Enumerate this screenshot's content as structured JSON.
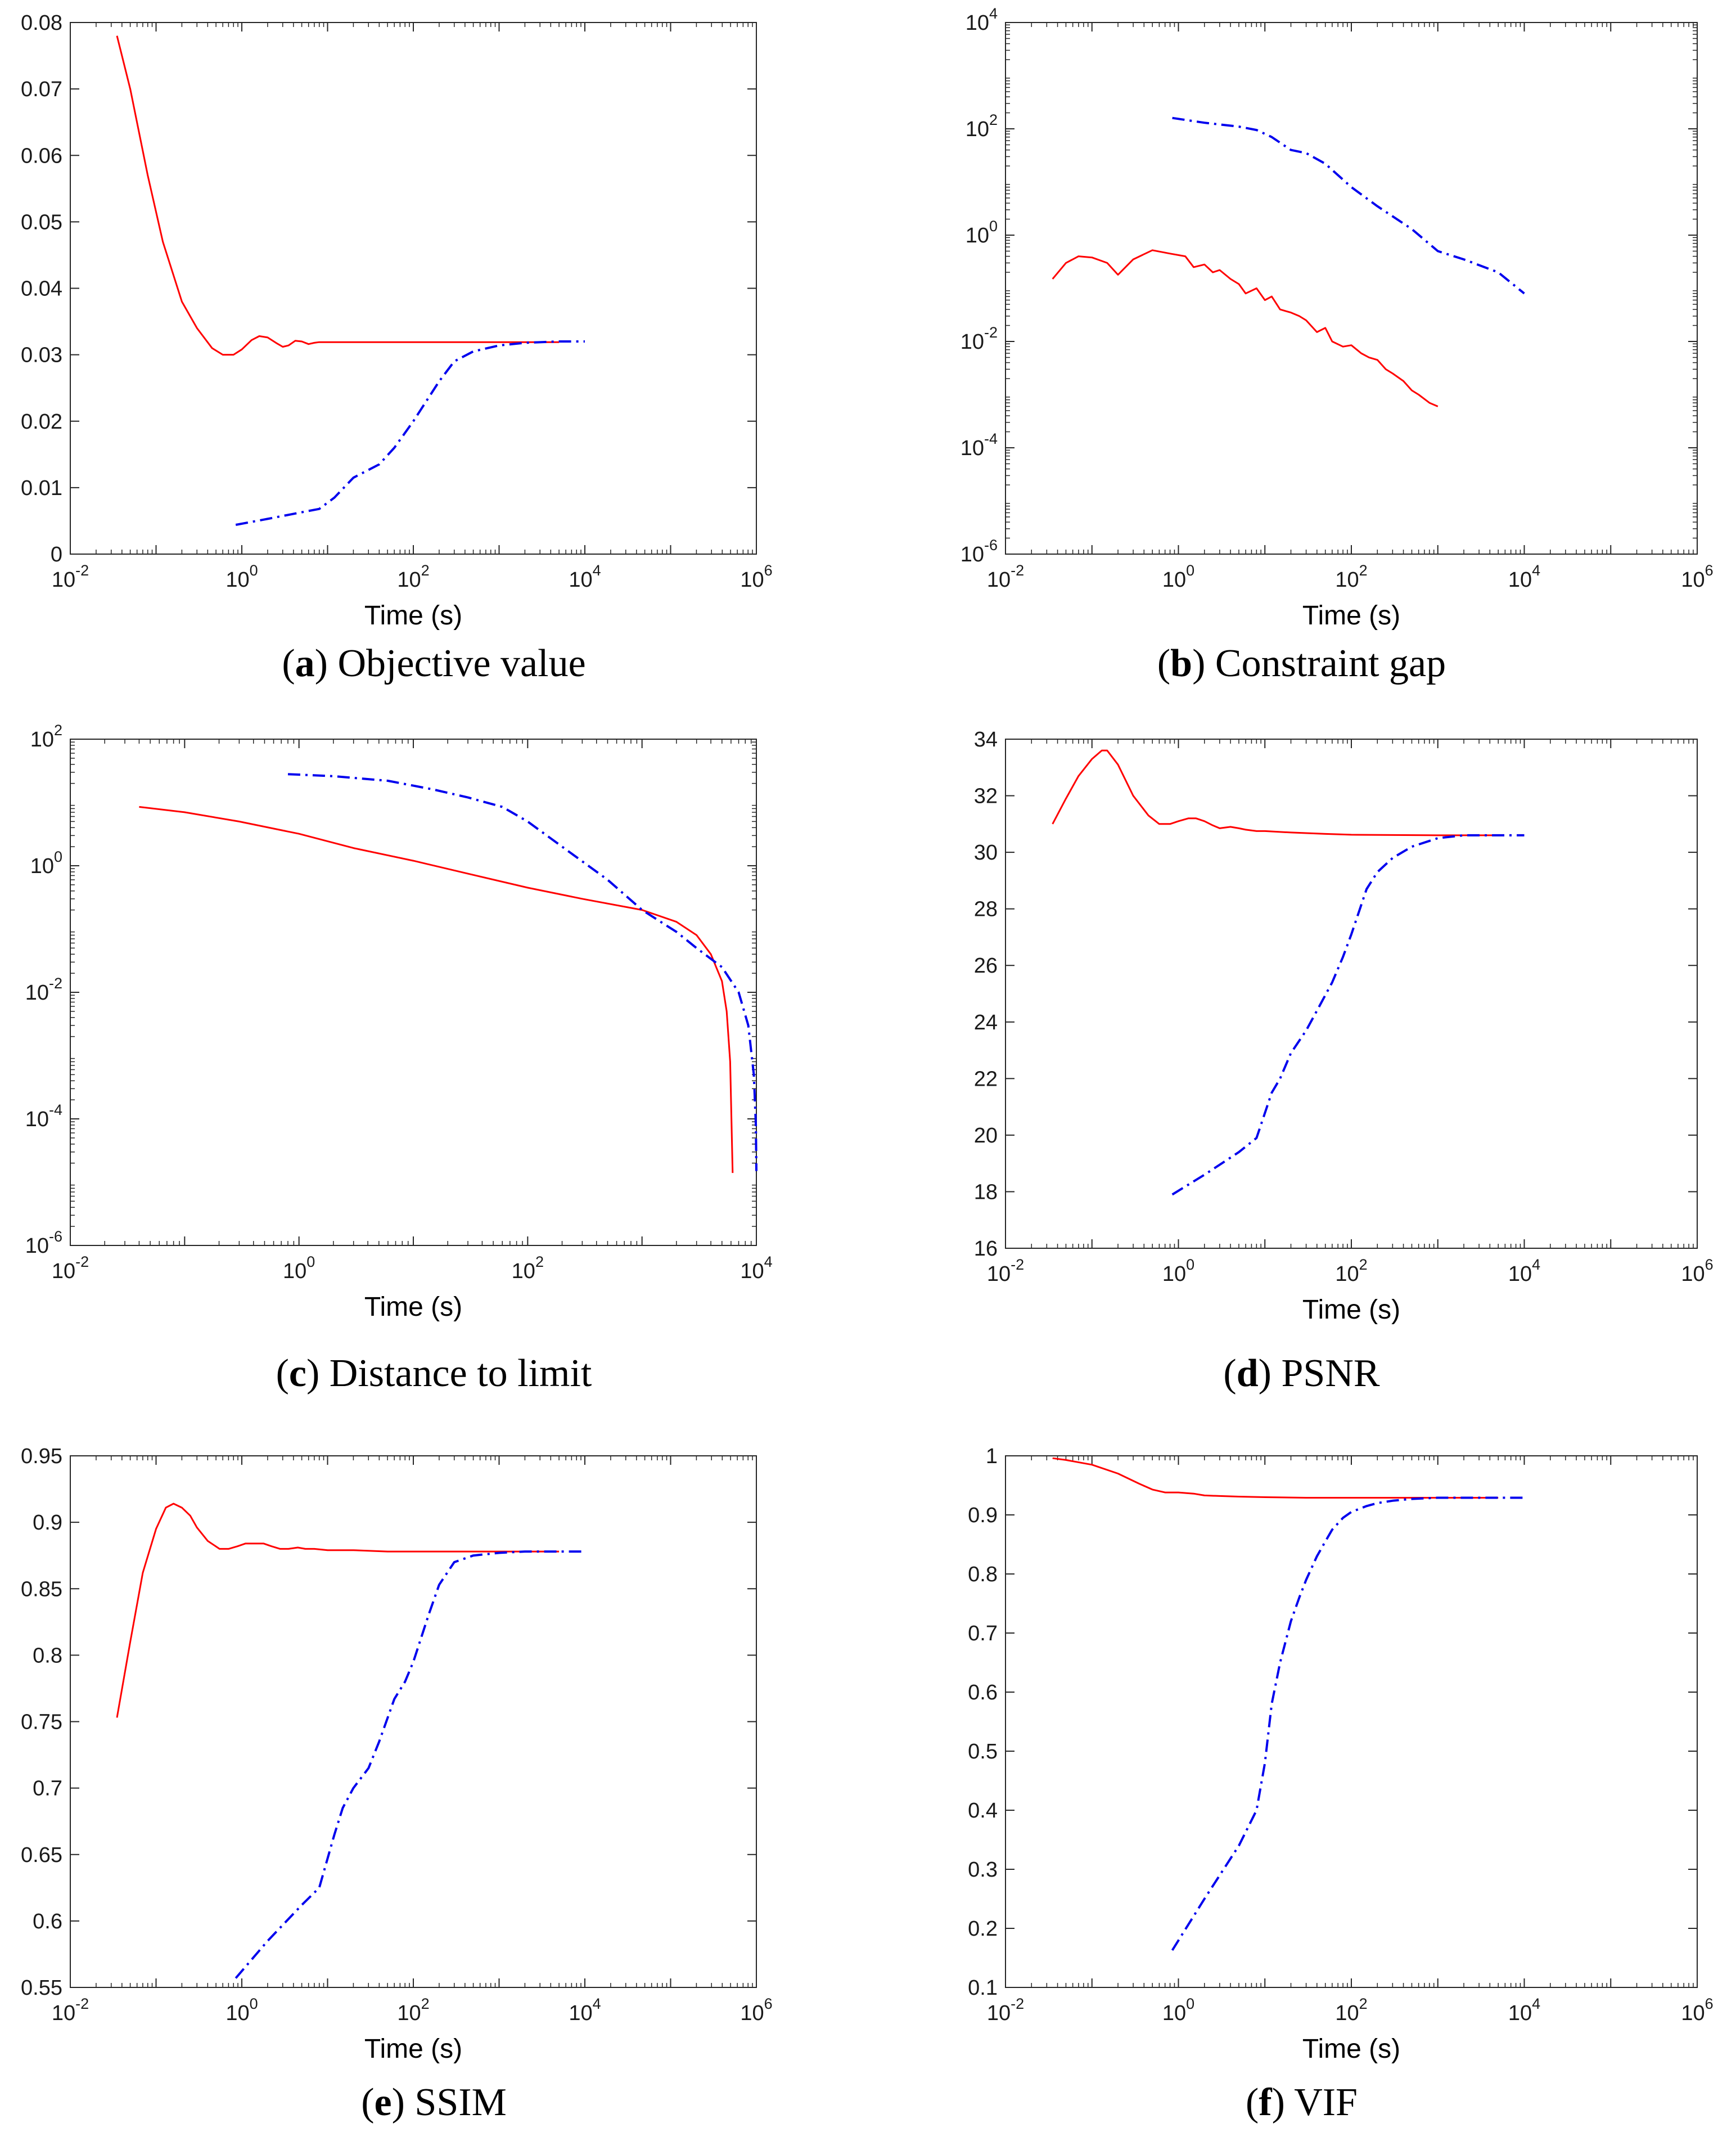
{
  "colors": {
    "red_series": "#ff0000",
    "blue_series": "#0000ee",
    "axis": "#262626"
  },
  "chart_data": [
    {
      "id": "a",
      "type": "line",
      "caption_letter": "a",
      "caption_text": "Objective value",
      "xlabel": "Time (s)",
      "xscale": "log",
      "xlim": [
        -2,
        6
      ],
      "xticks": [
        {
          "b": "10",
          "e": "-2"
        },
        {
          "b": "10",
          "e": "0"
        },
        {
          "b": "10",
          "e": "2"
        },
        {
          "b": "10",
          "e": "4"
        },
        {
          "b": "10",
          "e": "6"
        }
      ],
      "yscale": "linear",
      "ylim": [
        0,
        0.08
      ],
      "yticks": [
        "0",
        "0.01",
        "0.02",
        "0.03",
        "0.04",
        "0.05",
        "0.06",
        "0.07",
        "0.08"
      ],
      "series": [
        {
          "name": "red",
          "color": "red",
          "style": "solid",
          "x": [
            0.035,
            0.05,
            0.08,
            0.12,
            0.2,
            0.3,
            0.45,
            0.6,
            0.8,
            1.0,
            1.3,
            1.6,
            2.0,
            2.5,
            3.0,
            3.5,
            4.2,
            5,
            6,
            7,
            8,
            10,
            15,
            30,
            100,
            1000,
            5000
          ],
          "y": [
            0.078,
            0.07,
            0.057,
            0.047,
            0.038,
            0.034,
            0.031,
            0.03,
            0.03,
            0.0308,
            0.0322,
            0.0328,
            0.0326,
            0.0318,
            0.0312,
            0.0314,
            0.0321,
            0.032,
            0.0316,
            0.0318,
            0.0319,
            0.0319,
            0.0319,
            0.0319,
            0.0319,
            0.0319,
            0.0319
          ]
        },
        {
          "name": "blue",
          "color": "blue",
          "style": "dashdot",
          "x": [
            0.85,
            2,
            5,
            8,
            12,
            20,
            40,
            60,
            100,
            200,
            300,
            500,
            1000,
            2000,
            5000,
            10000
          ],
          "y": [
            0.0044,
            0.0053,
            0.0063,
            0.0068,
            0.0085,
            0.0115,
            0.0135,
            0.016,
            0.02,
            0.026,
            0.029,
            0.0305,
            0.0314,
            0.0318,
            0.032,
            0.032
          ]
        }
      ]
    },
    {
      "id": "b",
      "type": "line",
      "caption_letter": "b",
      "caption_text": "Constraint gap",
      "xlabel": "Time (s)",
      "xscale": "log",
      "xlim": [
        -2,
        6
      ],
      "xticks": [
        {
          "b": "10",
          "e": "-2"
        },
        {
          "b": "10",
          "e": "0"
        },
        {
          "b": "10",
          "e": "2"
        },
        {
          "b": "10",
          "e": "4"
        },
        {
          "b": "10",
          "e": "6"
        }
      ],
      "yscale": "log",
      "ylim": [
        -6,
        4
      ],
      "yticks": [
        {
          "b": "10",
          "e": "-6"
        },
        {
          "b": "10",
          "e": "-4"
        },
        {
          "b": "10",
          "e": "-2"
        },
        {
          "b": "10",
          "e": "0"
        },
        {
          "b": "10",
          "e": "2"
        },
        {
          "b": "10",
          "e": "4"
        }
      ],
      "series": [
        {
          "name": "red",
          "color": "red",
          "style": "solid",
          "x": [
            0.035,
            0.05,
            0.07,
            0.1,
            0.15,
            0.2,
            0.3,
            0.5,
            0.8,
            1.2,
            1.5,
            2,
            2.5,
            3,
            4,
            5,
            6,
            8,
            10,
            12,
            15,
            20,
            25,
            30,
            40,
            50,
            60,
            80,
            100,
            130,
            160,
            200,
            250,
            300,
            400,
            500,
            600,
            800,
            1000
          ],
          "y": [
            0.15,
            0.3,
            0.4,
            0.38,
            0.3,
            0.18,
            0.35,
            0.52,
            0.45,
            0.4,
            0.25,
            0.28,
            0.2,
            0.22,
            0.15,
            0.12,
            0.08,
            0.1,
            0.06,
            0.07,
            0.04,
            0.035,
            0.03,
            0.025,
            0.015,
            0.018,
            0.01,
            0.008,
            0.0085,
            0.006,
            0.005,
            0.0045,
            0.003,
            0.0025,
            0.0018,
            0.0012,
            0.001,
            0.0007,
            0.0006
          ]
        },
        {
          "name": "blue",
          "color": "blue",
          "style": "dashdot",
          "x": [
            0.85,
            2,
            5,
            8,
            12,
            20,
            30,
            50,
            100,
            200,
            500,
            1000,
            2000,
            5000,
            10000
          ],
          "y": [
            160,
            130,
            110,
            95,
            70,
            40,
            35,
            22,
            8,
            3.5,
            1.3,
            0.5,
            0.35,
            0.2,
            0.08
          ]
        }
      ]
    },
    {
      "id": "c",
      "type": "line",
      "caption_letter": "c",
      "caption_text": "Distance to limit",
      "xlabel": "Time (s)",
      "xscale": "log",
      "xlim": [
        -2,
        4
      ],
      "xticks": [
        {
          "b": "10",
          "e": "-2"
        },
        {
          "b": "10",
          "e": "0"
        },
        {
          "b": "10",
          "e": "2"
        },
        {
          "b": "10",
          "e": "4"
        }
      ],
      "yscale": "log",
      "ylim": [
        -6,
        2
      ],
      "yticks": [
        {
          "b": "10",
          "e": "-6"
        },
        {
          "b": "10",
          "e": "-4"
        },
        {
          "b": "10",
          "e": "-2"
        },
        {
          "b": "10",
          "e": "0"
        },
        {
          "b": "10",
          "e": "2"
        }
      ],
      "series": [
        {
          "name": "red",
          "color": "red",
          "style": "solid",
          "x": [
            0.04,
            0.1,
            0.3,
            1,
            3,
            10,
            30,
            100,
            300,
            1000,
            2000,
            3000,
            4000,
            5000,
            5500,
            5900,
            6100,
            6200
          ],
          "y": [
            8.5,
            7,
            5,
            3.2,
            1.9,
            1.2,
            0.75,
            0.45,
            0.3,
            0.2,
            0.13,
            0.08,
            0.04,
            0.015,
            0.005,
            0.0008,
            5e-05,
            1.4e-05
          ]
        },
        {
          "name": "blue",
          "color": "blue",
          "style": "dashdot",
          "x": [
            0.8,
            2,
            6,
            15,
            30,
            60,
            100,
            200,
            500,
            1000,
            2000,
            3000,
            5000,
            7000,
            8500,
            9500,
            9900,
            10000
          ],
          "y": [
            28,
            26,
            22,
            16,
            12,
            8.5,
            5,
            2,
            0.6,
            0.2,
            0.09,
            0.05,
            0.025,
            0.01,
            0.003,
            0.0005,
            8e-05,
            1.5e-05
          ]
        }
      ]
    },
    {
      "id": "d",
      "type": "line",
      "caption_letter": "d",
      "caption_text": "PSNR",
      "xlabel": "Time (s)",
      "xscale": "log",
      "xlim": [
        -2,
        6
      ],
      "xticks": [
        {
          "b": "10",
          "e": "-2"
        },
        {
          "b": "10",
          "e": "0"
        },
        {
          "b": "10",
          "e": "2"
        },
        {
          "b": "10",
          "e": "4"
        },
        {
          "b": "10",
          "e": "6"
        }
      ],
      "yscale": "linear",
      "ylim": [
        16,
        34
      ],
      "yticks": [
        "16",
        "18",
        "20",
        "22",
        "24",
        "26",
        "28",
        "30",
        "32",
        "34"
      ],
      "series": [
        {
          "name": "red",
          "color": "red",
          "style": "solid",
          "x": [
            0.035,
            0.05,
            0.07,
            0.1,
            0.13,
            0.15,
            0.2,
            0.3,
            0.45,
            0.6,
            0.8,
            1.0,
            1.3,
            1.6,
            2.0,
            2.5,
            3,
            4,
            5,
            6,
            8,
            10,
            20,
            50,
            100,
            1000,
            5000
          ],
          "y": [
            31.0,
            31.9,
            32.7,
            33.3,
            33.6,
            33.6,
            33.1,
            32.0,
            31.3,
            31.0,
            31.0,
            31.1,
            31.2,
            31.2,
            31.1,
            30.95,
            30.85,
            30.9,
            30.85,
            30.8,
            30.75,
            30.75,
            30.7,
            30.65,
            30.62,
            30.6,
            30.6
          ]
        },
        {
          "name": "blue",
          "color": "blue",
          "style": "dashdot",
          "x": [
            0.85,
            2,
            5,
            8,
            12,
            15,
            20,
            30,
            40,
            60,
            80,
            100,
            150,
            200,
            300,
            500,
            1000,
            2000,
            5000,
            10000
          ],
          "y": [
            17.9,
            18.6,
            19.4,
            19.9,
            21.5,
            22.0,
            22.9,
            23.7,
            24.4,
            25.4,
            26.3,
            27.1,
            28.7,
            29.3,
            29.8,
            30.2,
            30.5,
            30.6,
            30.6,
            30.6
          ]
        }
      ]
    },
    {
      "id": "e",
      "type": "line",
      "caption_letter": "e",
      "caption_text": "SSIM",
      "xlabel": "Time (s)",
      "xscale": "log",
      "xlim": [
        -2,
        6
      ],
      "xticks": [
        {
          "b": "10",
          "e": "-2"
        },
        {
          "b": "10",
          "e": "0"
        },
        {
          "b": "10",
          "e": "2"
        },
        {
          "b": "10",
          "e": "4"
        },
        {
          "b": "10",
          "e": "6"
        }
      ],
      "yscale": "linear",
      "ylim": [
        0.55,
        0.95
      ],
      "yticks": [
        "0.55",
        "0.6",
        "0.65",
        "0.7",
        "0.75",
        "0.8",
        "0.85",
        "0.9",
        "0.95"
      ],
      "series": [
        {
          "name": "red",
          "color": "red",
          "style": "solid",
          "x": [
            0.035,
            0.05,
            0.07,
            0.1,
            0.13,
            0.16,
            0.2,
            0.25,
            0.3,
            0.4,
            0.55,
            0.7,
            0.9,
            1.1,
            1.4,
            1.8,
            2.2,
            2.8,
            3.5,
            4.5,
            5.5,
            7,
            10,
            20,
            50,
            200,
            1000,
            5000
          ],
          "y": [
            0.753,
            0.81,
            0.862,
            0.895,
            0.911,
            0.914,
            0.911,
            0.905,
            0.896,
            0.886,
            0.88,
            0.88,
            0.882,
            0.884,
            0.884,
            0.884,
            0.882,
            0.88,
            0.88,
            0.881,
            0.88,
            0.88,
            0.879,
            0.879,
            0.878,
            0.878,
            0.878,
            0.878
          ]
        },
        {
          "name": "blue",
          "color": "blue",
          "style": "dashdot",
          "x": [
            0.85,
            2,
            5,
            8,
            12,
            15,
            20,
            30,
            40,
            60,
            80,
            100,
            150,
            200,
            300,
            500,
            1000,
            2000,
            5000,
            10000
          ],
          "y": [
            0.557,
            0.585,
            0.612,
            0.625,
            0.665,
            0.685,
            0.7,
            0.715,
            0.735,
            0.767,
            0.78,
            0.795,
            0.83,
            0.853,
            0.87,
            0.875,
            0.877,
            0.878,
            0.878,
            0.878
          ]
        }
      ]
    },
    {
      "id": "f",
      "type": "line",
      "caption_letter": "f",
      "caption_text": "VIF",
      "xlabel": "Time (s)",
      "xscale": "log",
      "xlim": [
        -2,
        6
      ],
      "xticks": [
        {
          "b": "10",
          "e": "-2"
        },
        {
          "b": "10",
          "e": "0"
        },
        {
          "b": "10",
          "e": "2"
        },
        {
          "b": "10",
          "e": "4"
        },
        {
          "b": "10",
          "e": "6"
        }
      ],
      "yscale": "linear",
      "ylim": [
        0.1,
        1
      ],
      "yticks": [
        "0.1",
        "0.2",
        "0.3",
        "0.4",
        "0.5",
        "0.6",
        "0.7",
        "0.8",
        "0.9",
        "1"
      ],
      "series": [
        {
          "name": "red",
          "color": "red",
          "style": "solid",
          "x": [
            0.035,
            0.05,
            0.1,
            0.2,
            0.35,
            0.5,
            0.7,
            1,
            1.5,
            2,
            3,
            5,
            10,
            30,
            100,
            1000,
            5000
          ],
          "y": [
            0.996,
            0.993,
            0.985,
            0.97,
            0.953,
            0.943,
            0.938,
            0.938,
            0.936,
            0.933,
            0.932,
            0.931,
            0.93,
            0.929,
            0.929,
            0.929,
            0.929
          ]
        },
        {
          "name": "blue",
          "color": "blue",
          "style": "dashdot",
          "x": [
            0.85,
            2,
            5,
            8,
            10,
            12,
            15,
            20,
            25,
            30,
            40,
            50,
            60,
            80,
            100,
            150,
            200,
            300,
            500,
            1000,
            2000,
            5000,
            10000
          ],
          "y": [
            0.163,
            0.25,
            0.34,
            0.4,
            0.48,
            0.58,
            0.65,
            0.72,
            0.76,
            0.79,
            0.83,
            0.855,
            0.875,
            0.895,
            0.905,
            0.915,
            0.92,
            0.924,
            0.927,
            0.929,
            0.929,
            0.929,
            0.929
          ]
        }
      ]
    }
  ]
}
